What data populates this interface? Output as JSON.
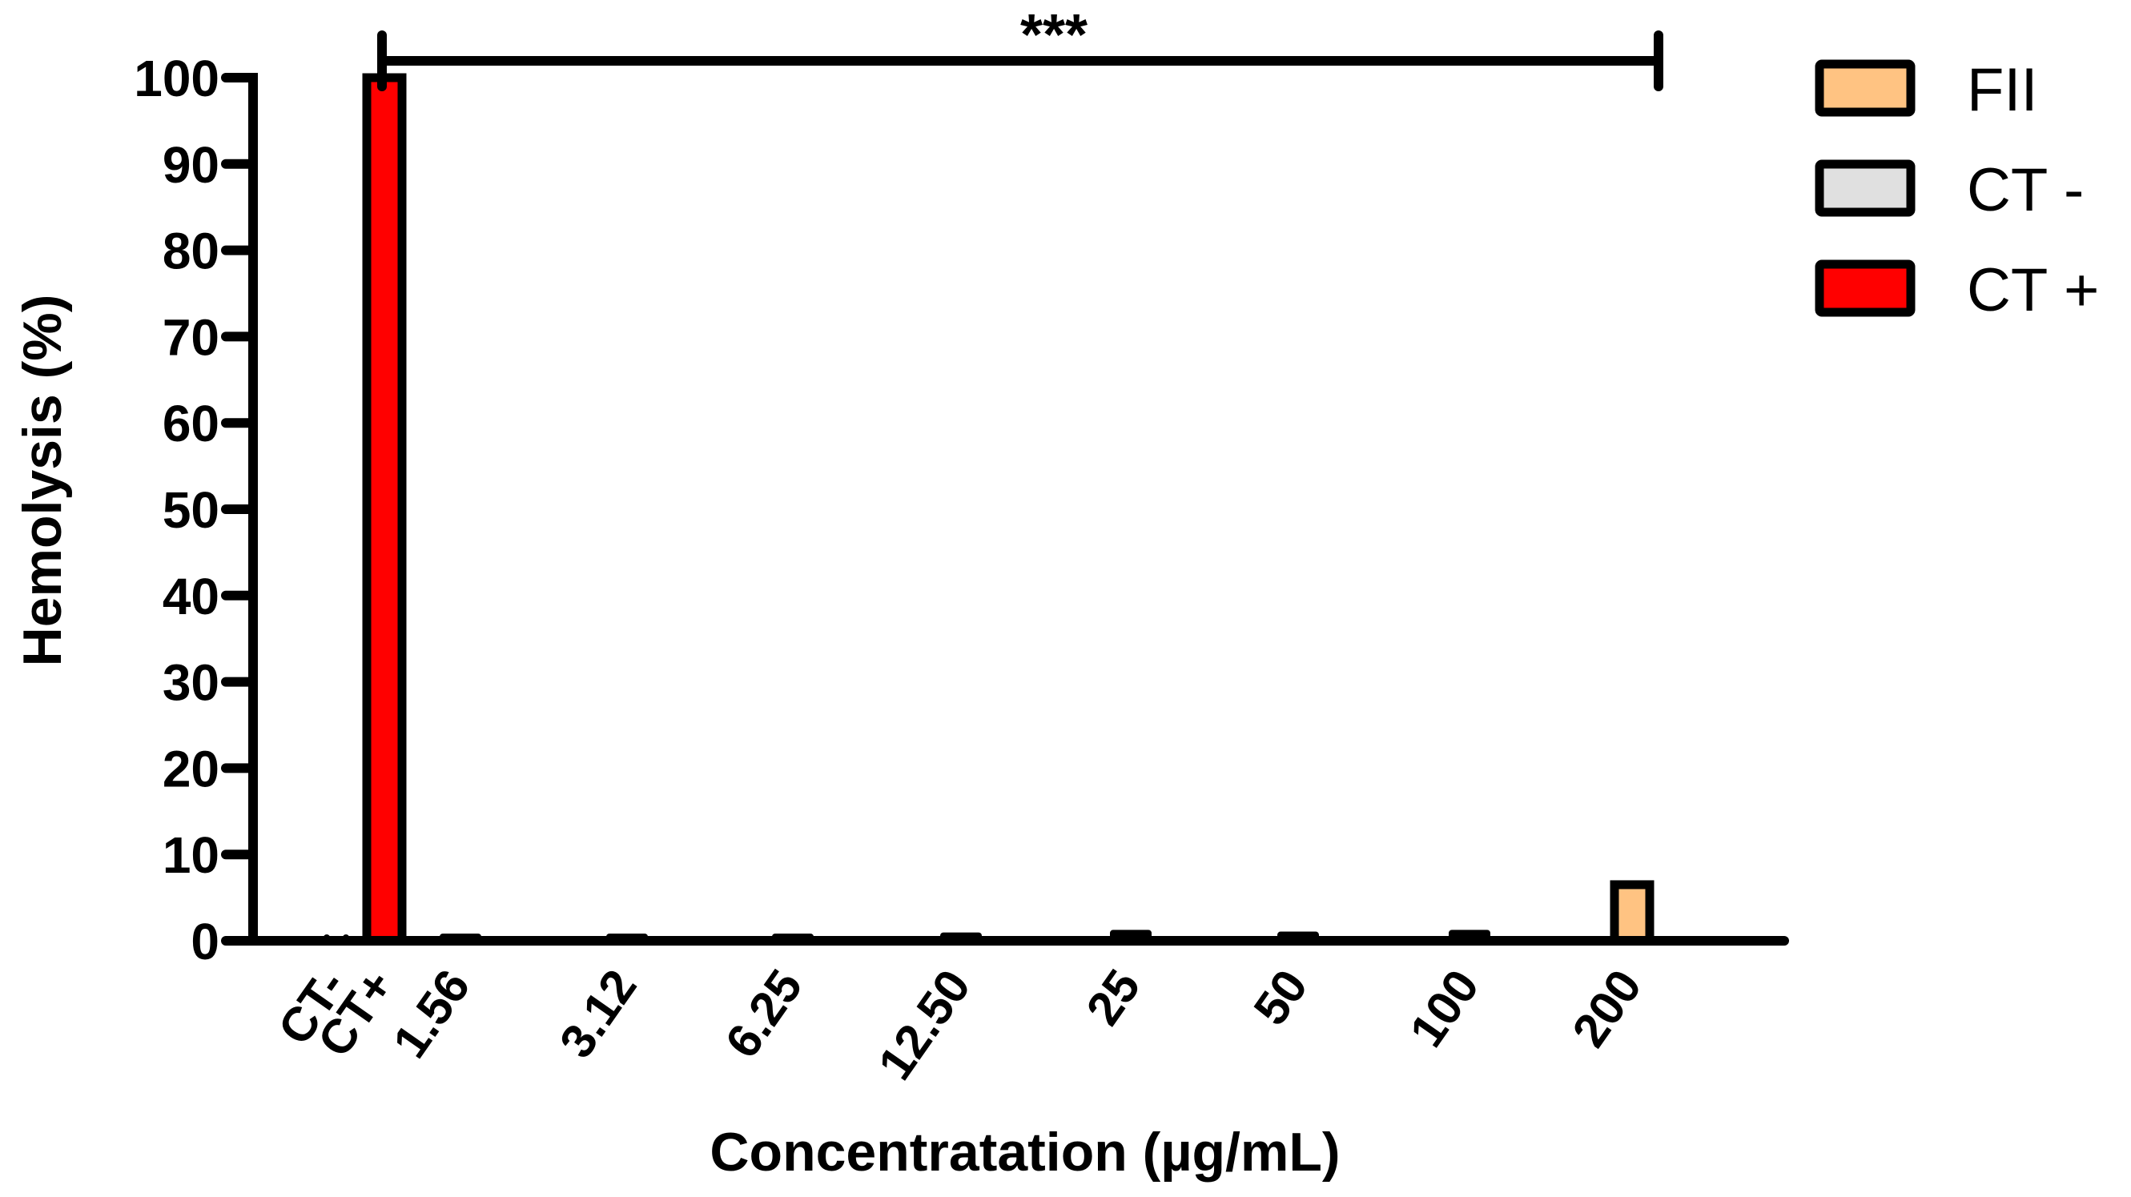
{
  "chart_data": {
    "type": "bar",
    "title": "",
    "xlabel": "Concentratation (µg/mL)",
    "ylabel": "Hemolysis (%)",
    "ylim": [
      0,
      100
    ],
    "yticks": [
      0,
      10,
      20,
      30,
      40,
      50,
      60,
      70,
      80,
      90,
      100
    ],
    "grid": false,
    "legend_position": "top-right",
    "categories": [
      "CT-",
      "CT+",
      "1.56",
      "3.12",
      "6.25",
      "12.50",
      "25",
      "50",
      "100",
      "200"
    ],
    "values": [
      0.0,
      100.0,
      0.2,
      0.3,
      0.3,
      0.5,
      0.8,
      0.6,
      0.8,
      6.5
    ],
    "bar_series": [
      "CT -",
      "CT +",
      "FII",
      "FII",
      "FII",
      "FII",
      "FII",
      "FII",
      "FII",
      "FII"
    ],
    "series": [
      {
        "name": "FII",
        "color": "#FFC382",
        "categories": [
          "1.56",
          "3.12",
          "6.25",
          "12.50",
          "25",
          "50",
          "100",
          "200"
        ],
        "values": [
          0.2,
          0.3,
          0.3,
          0.5,
          0.8,
          0.6,
          0.8,
          6.5
        ]
      },
      {
        "name": "CT -",
        "color": "#E0E0E0",
        "categories": [
          "CT-"
        ],
        "values": [
          0.0
        ]
      },
      {
        "name": "CT +",
        "color": "#FF0000",
        "categories": [
          "CT+"
        ],
        "values": [
          100.0
        ]
      }
    ],
    "annotations": [
      {
        "type": "significance-bracket",
        "from": "CT+",
        "to": "200",
        "label": "***"
      }
    ]
  },
  "legend": {
    "items": [
      {
        "label": "FII",
        "color": "#FFC382"
      },
      {
        "label": "CT -",
        "color": "#E0E0E0"
      },
      {
        "label": "CT +",
        "color": "#FF0000"
      }
    ]
  },
  "axes": {
    "x_title": "Concentratation (µg/mL)",
    "y_title": "Hemolysis (%)"
  },
  "significance": {
    "label": "***"
  },
  "colors": {
    "axis": "#000000",
    "background": "#FFFFFF"
  }
}
